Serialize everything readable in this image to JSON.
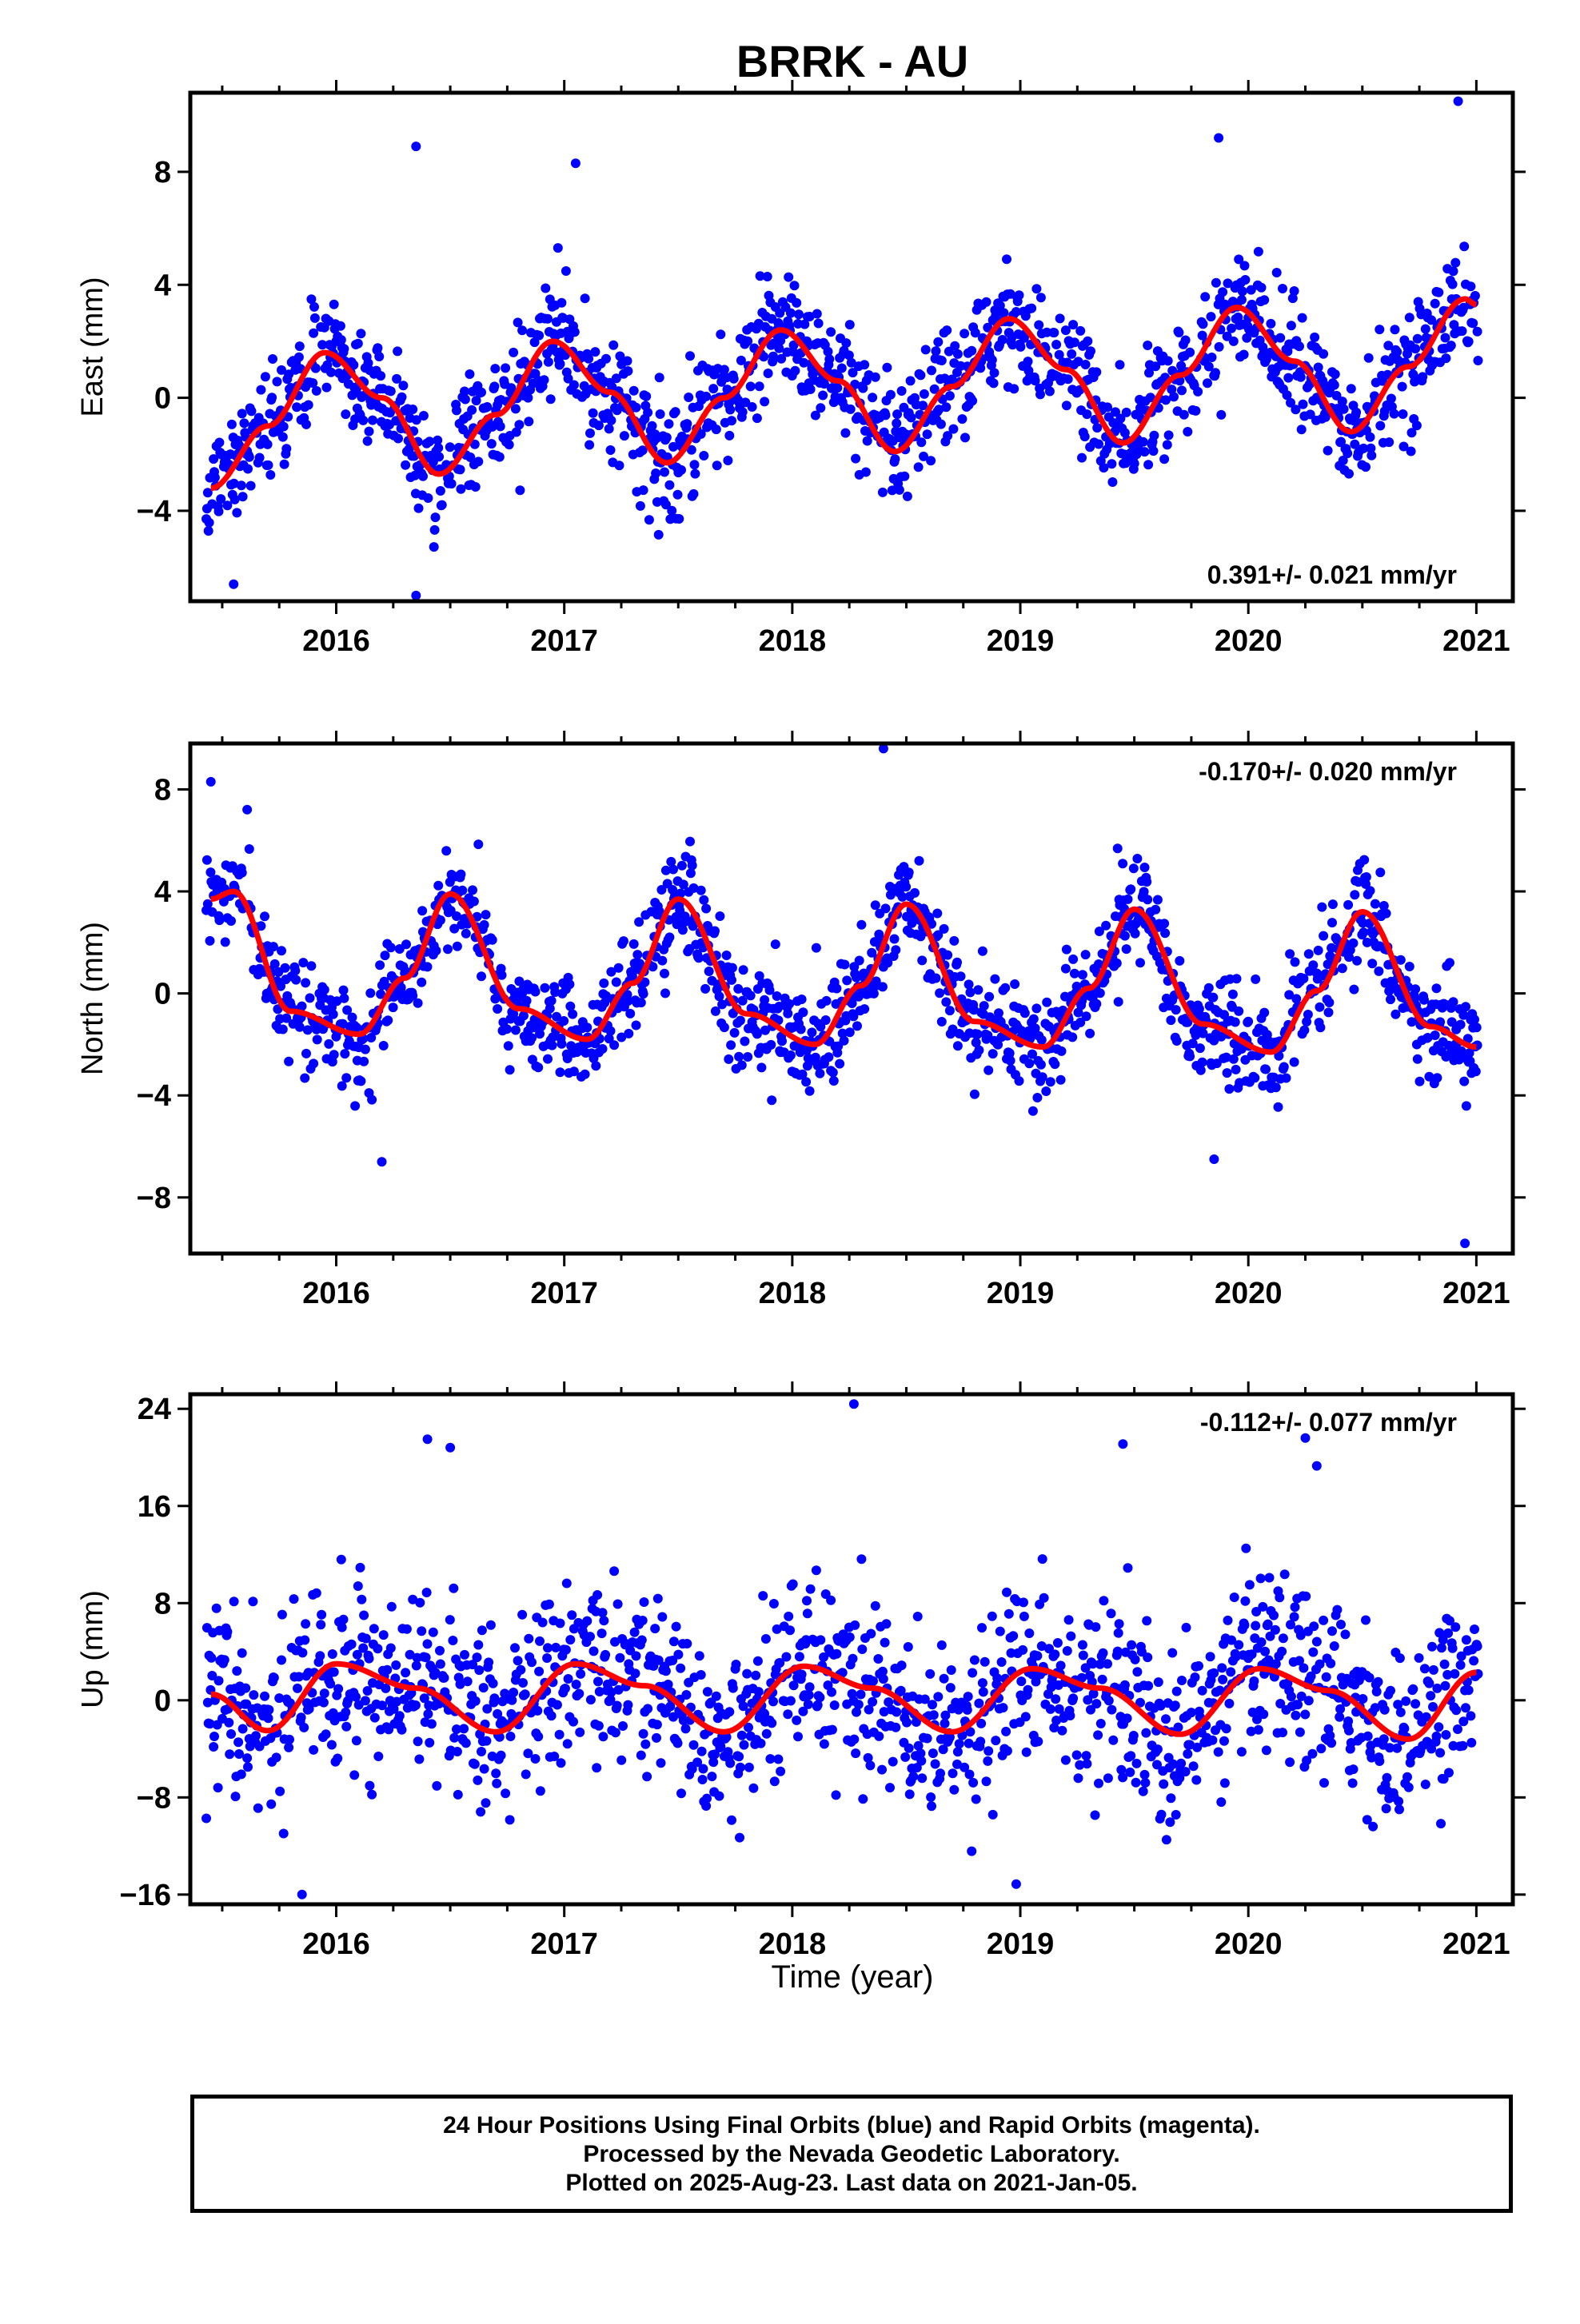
{
  "title": "BRRK - AU",
  "colors": {
    "points": "#0000ff",
    "fit": "#ff0000",
    "frame": "#000000"
  },
  "xaxis": {
    "label": "Time (year)",
    "range": [
      2015.36,
      2021.16
    ],
    "ticks": [
      "2016",
      "2017",
      "2018",
      "2019",
      "2020",
      "2021"
    ]
  },
  "panels": [
    {
      "name": "east",
      "ylabel": "East (mm)",
      "ylim": [
        -7.2,
        10.8
      ],
      "yticks": [
        "8",
        "4",
        "0",
        "−4"
      ],
      "yvals": [
        8,
        4,
        0,
        -4
      ],
      "rate_text": "0.391+/- 0.021 mm/yr",
      "rate_position": "bottom-right"
    },
    {
      "name": "north",
      "ylabel": "North (mm)",
      "ylim": [
        -10.2,
        9.8
      ],
      "yticks": [
        "8",
        "4",
        "0",
        "−4",
        "−8"
      ],
      "yvals": [
        8,
        4,
        0,
        -4,
        -8
      ],
      "rate_text": "-0.170+/- 0.020 mm/yr",
      "rate_position": "top-right"
    },
    {
      "name": "up",
      "ylabel": "Up (mm)",
      "ylim": [
        -16.8,
        25.2
      ],
      "yticks": [
        "24",
        "16",
        "8",
        "0",
        "−8",
        "−16"
      ],
      "yvals": [
        24,
        16,
        8,
        0,
        -8,
        -16
      ],
      "rate_text": "-0.112+/- 0.077 mm/yr",
      "rate_position": "top-right"
    }
  ],
  "caption": [
    "24 Hour Positions Using Final Orbits (blue) and Rapid Orbits (magenta).",
    "Processed by the Nevada Geodetic Laboratory.",
    "Plotted on 2025-Aug-23. Last data on 2021-Jan-05."
  ],
  "chart_data": [
    {
      "type": "scatter",
      "title": "BRRK - AU",
      "xlabel": "Time (year)",
      "ylabel": "East (mm)",
      "xlim": [
        2015.36,
        2021.16
      ],
      "ylim": [
        -7.2,
        10.8
      ],
      "series": [
        {
          "kind": "fit-line",
          "x": [
            2015.45,
            2015.7,
            2015.95,
            2016.2,
            2016.45,
            2016.7,
            2016.95,
            2017.2,
            2017.45,
            2017.7,
            2017.95,
            2018.2,
            2018.45,
            2018.7,
            2018.95,
            2019.2,
            2019.45,
            2019.7,
            2019.95,
            2020.2,
            2020.45,
            2020.7,
            2020.95,
            2021.0
          ],
          "values": [
            -3.2,
            -1.0,
            1.6,
            0.0,
            -2.7,
            -0.6,
            2.0,
            0.2,
            -2.3,
            0.0,
            2.4,
            0.6,
            -1.9,
            0.4,
            2.8,
            1.0,
            -1.6,
            0.8,
            3.2,
            1.3,
            -1.2,
            1.1,
            3.5,
            3.3
          ]
        }
      ],
      "outliers": {
        "x": [
          2016.35,
          2017.05,
          2016.35,
          2019.87,
          2020.92,
          2015.55
        ],
        "values": [
          8.9,
          8.3,
          -7.0,
          9.2,
          10.5,
          -6.6
        ]
      }
    },
    {
      "type": "scatter",
      "xlabel": "Time (year)",
      "ylabel": "North (mm)",
      "xlim": [
        2015.36,
        2021.16
      ],
      "ylim": [
        -10.2,
        9.8
      ],
      "series": [
        {
          "kind": "fit-line",
          "x": [
            2015.45,
            2015.55,
            2015.8,
            2016.1,
            2016.3,
            2016.5,
            2016.8,
            2017.1,
            2017.3,
            2017.5,
            2017.8,
            2018.1,
            2018.3,
            2018.5,
            2018.8,
            2019.1,
            2019.3,
            2019.5,
            2019.8,
            2020.1,
            2020.3,
            2020.5,
            2020.8,
            2021.0
          ],
          "values": [
            3.7,
            4.0,
            -0.7,
            -1.6,
            0.6,
            3.9,
            -0.6,
            -1.8,
            0.4,
            3.7,
            -0.8,
            -2.0,
            0.3,
            3.5,
            -1.1,
            -2.1,
            0.2,
            3.3,
            -1.2,
            -2.3,
            0.1,
            3.2,
            -1.3,
            -2.1
          ]
        }
      ],
      "outliers": {
        "x": [
          2015.45,
          2018.4,
          2020.95,
          2016.2,
          2019.85
        ],
        "values": [
          8.3,
          9.6,
          -9.8,
          -6.6,
          -6.5
        ]
      }
    },
    {
      "type": "scatter",
      "xlabel": "Time (year)",
      "ylabel": "Up (mm)",
      "xlim": [
        2015.36,
        2021.16
      ],
      "ylim": [
        -16.8,
        25.2
      ],
      "series": [
        {
          "kind": "fit-line",
          "x": [
            2015.45,
            2015.7,
            2016.0,
            2016.35,
            2016.7,
            2017.05,
            2017.35,
            2017.7,
            2018.05,
            2018.35,
            2018.7,
            2019.05,
            2019.35,
            2019.7,
            2020.05,
            2020.35,
            2020.7,
            2021.0
          ],
          "values": [
            0.5,
            -2.5,
            3.0,
            1.0,
            -2.6,
            3.0,
            1.2,
            -2.6,
            2.8,
            1.0,
            -2.6,
            2.6,
            1.0,
            -2.8,
            2.6,
            0.8,
            -3.2,
            2.3
          ]
        }
      ],
      "outliers": {
        "x": [
          2018.27,
          2016.4,
          2016.5,
          2020.25,
          2019.45,
          2015.85,
          2020.3
        ],
        "values": [
          24.4,
          21.5,
          20.8,
          21.6,
          21.1,
          -16.0,
          19.3
        ]
      }
    }
  ]
}
